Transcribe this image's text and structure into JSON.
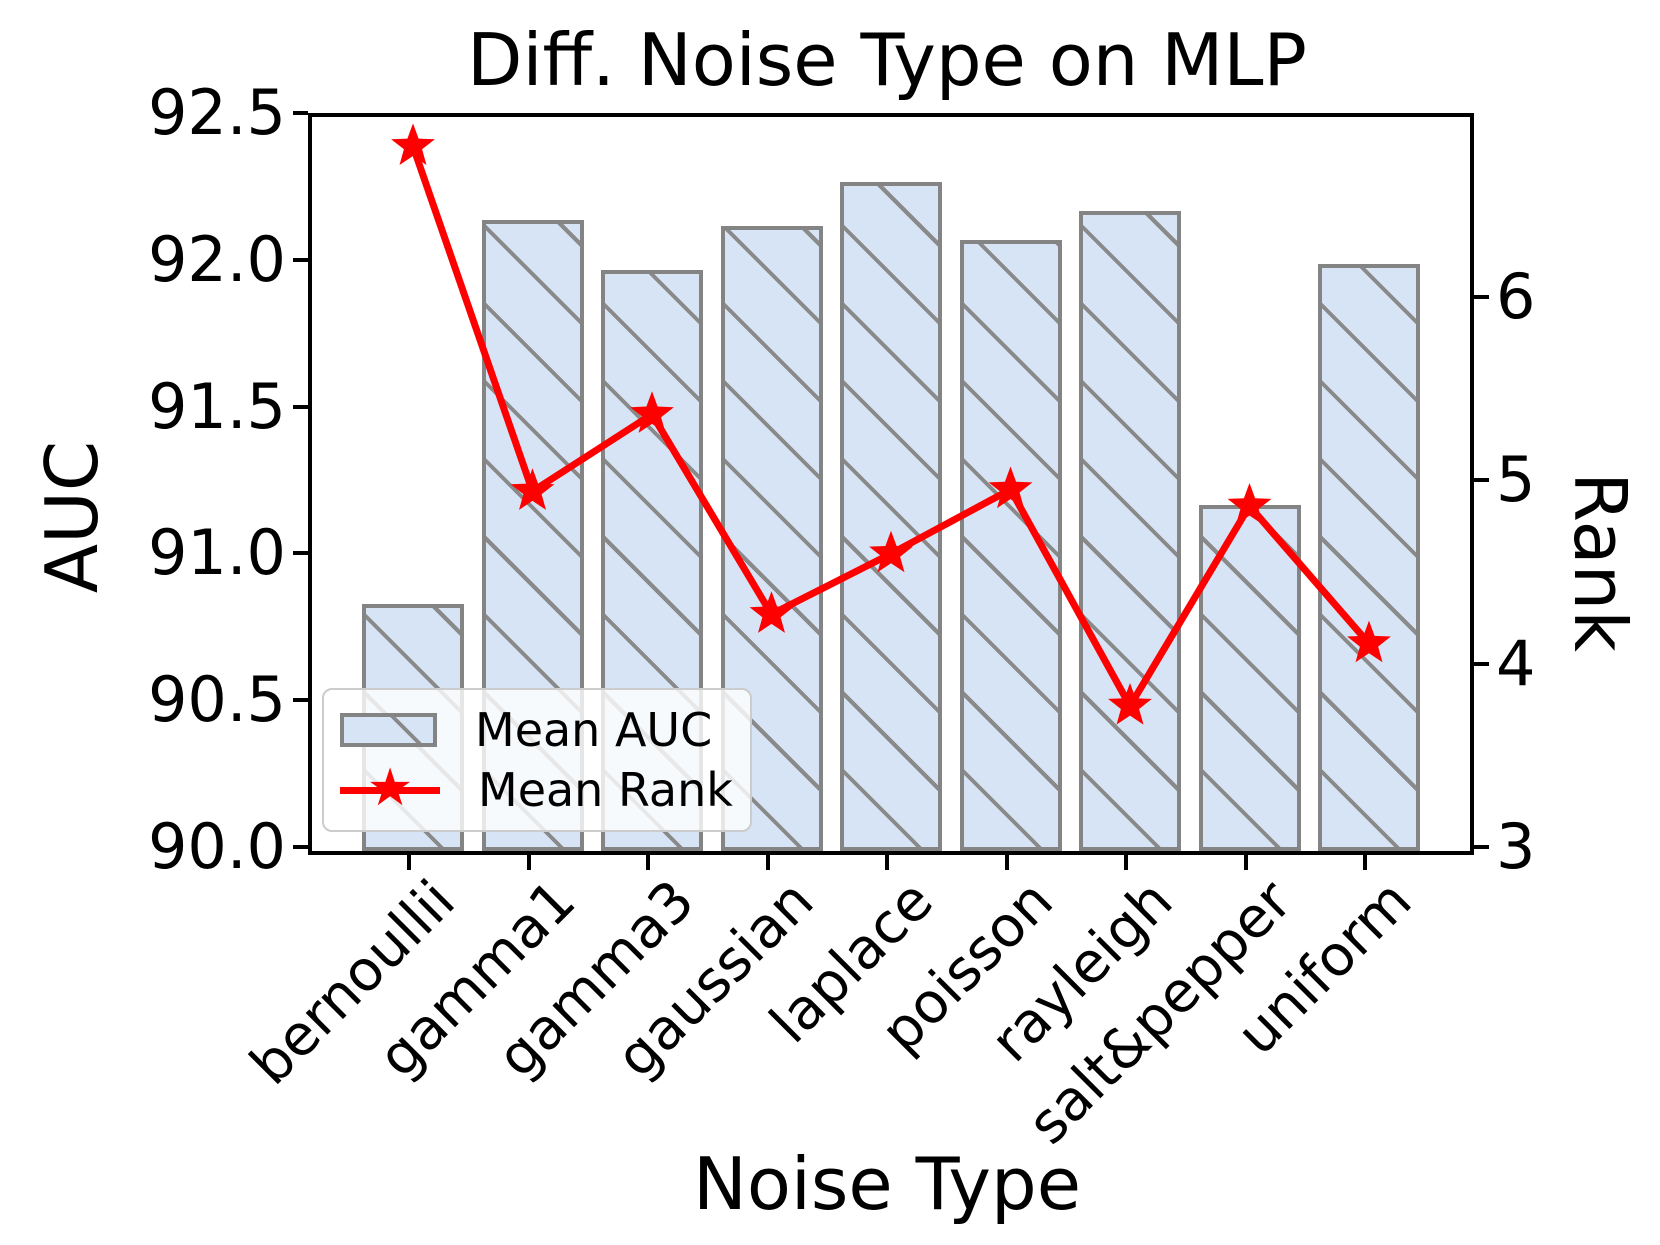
{
  "title": "Diff. Noise Type on MLP",
  "legend": {
    "auc_label": "Mean AUC",
    "rank_label": "Mean Rank"
  },
  "chart_data": {
    "type": "bar",
    "categories": [
      "bernoullii",
      "gamma1",
      "gamma3",
      "gaussian",
      "laplace",
      "poisson",
      "rayleigh",
      "salt&pepper",
      "uniform"
    ],
    "series": [
      {
        "name": "Mean AUC",
        "type": "bar",
        "axis": "left",
        "values": [
          90.84,
          92.15,
          91.98,
          92.13,
          92.28,
          92.08,
          92.18,
          91.18,
          92.0
        ]
      },
      {
        "name": "Mean Rank",
        "type": "line",
        "axis": "right",
        "values": [
          6.84,
          4.96,
          5.38,
          4.29,
          4.62,
          4.97,
          3.79,
          4.88,
          4.13
        ]
      }
    ],
    "title": "Diff. Noise Type on MLP",
    "xlabel": "Noise Type",
    "ylabel_left": "AUC",
    "ylabel_right": "Rank",
    "ylim_left": [
      90.0,
      92.5
    ],
    "ylim_right": [
      3,
      7
    ],
    "yticks_left": [
      "90.0",
      "90.5",
      "91.0",
      "91.5",
      "92.0",
      "92.5"
    ],
    "yticks_right": [
      "3",
      "4",
      "5",
      "6"
    ],
    "xtick_rotation": 45,
    "grid": false,
    "legend_position": "lower left",
    "bar_fill_color": "#d7e4f6",
    "bar_edge_color": "#848484",
    "hatch": "\\",
    "hatch_color": "#8a8a8a",
    "line_color": "#ff0000",
    "marker": "star"
  }
}
